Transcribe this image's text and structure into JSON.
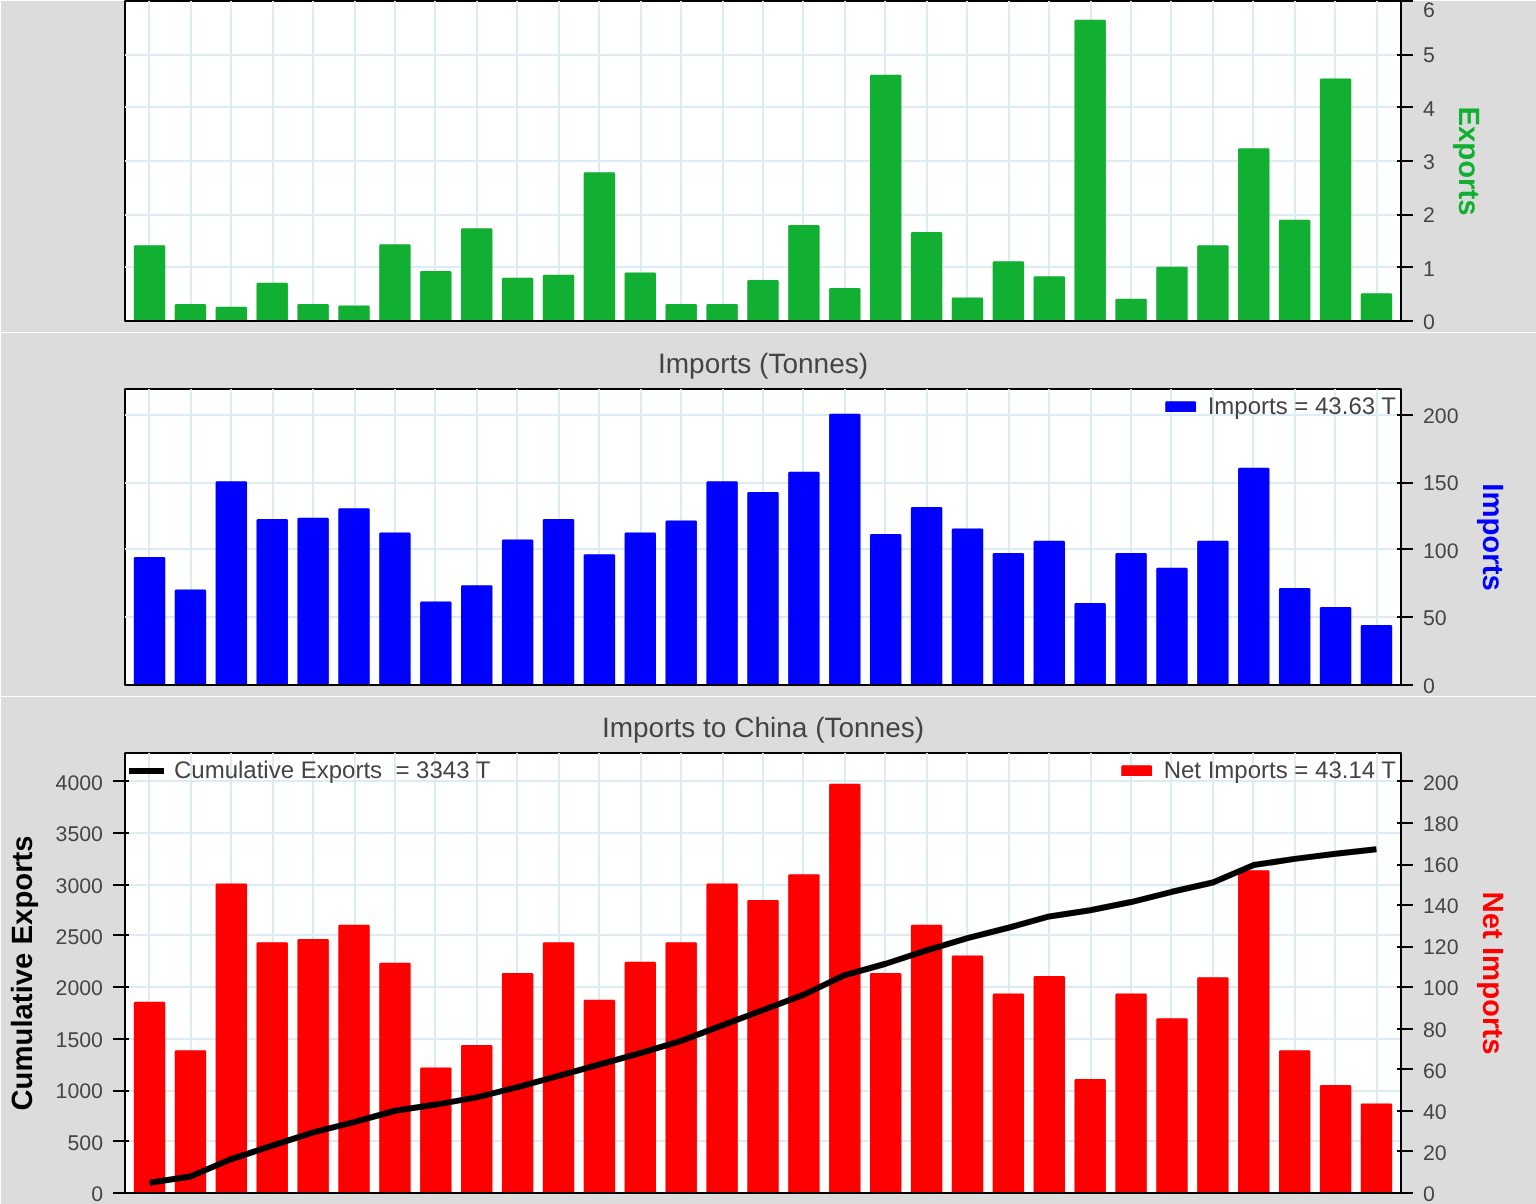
{
  "chart_data": [
    {
      "type": "bar",
      "ylabel": "Exports",
      "categories": [
        null,
        null,
        null,
        null,
        null,
        null,
        null,
        null,
        null,
        null,
        null,
        null,
        null,
        null,
        null,
        null,
        null,
        null,
        null,
        null,
        null,
        null,
        null,
        null,
        null,
        null,
        null,
        null,
        null,
        null,
        null
      ],
      "ylim": [
        0,
        6
      ],
      "yticks": [
        0,
        1,
        2,
        3,
        4,
        5,
        6
      ],
      "grid": true,
      "tick_labels": "y",
      "legend": false,
      "series": [
        {
          "color": "#12b032",
          "values": [
            1.4,
            0.3,
            0.25,
            0.7,
            0.3,
            0.27,
            1.42,
            0.92,
            1.72,
            0.79,
            0.85,
            2.77,
            0.89,
            0.3,
            0.3,
            0.75,
            1.78,
            0.6,
            4.6,
            1.65,
            0.42,
            1.1,
            0.82,
            5.63,
            0.4,
            1.0,
            1.4,
            3.22,
            1.88,
            4.53,
            0.5
          ]
        }
      ]
    },
    {
      "type": "bar",
      "title": "Imports (Tonnes)",
      "ylabel": "Imports",
      "categories": [
        null,
        null,
        null,
        null,
        null,
        null,
        null,
        null,
        null,
        null,
        null,
        null,
        null,
        null,
        null,
        null,
        null,
        null,
        null,
        null,
        null,
        null,
        null,
        null,
        null,
        null,
        null,
        null,
        null,
        null,
        null
      ],
      "ylim": [
        0,
        219
      ],
      "yticks": [
        0,
        50,
        100,
        150,
        200
      ],
      "grid": true,
      "tick_labels": "y",
      "legend": "top right",
      "series": [
        {
          "name": "Imports = 43.63 T",
          "color": "#0000ff",
          "values": [
            94,
            70,
            150,
            122,
            123,
            130,
            112,
            61,
            73,
            107,
            122,
            96,
            112,
            121,
            150,
            142,
            157,
            200,
            111,
            131,
            115,
            97,
            106,
            60,
            97,
            86,
            106,
            160,
            71,
            57,
            43.6
          ]
        }
      ]
    },
    {
      "type": "bar",
      "title": "Imports to China (Tonnes)",
      "ylabel": "Cumulative Exports",
      "y2label": "Net Imports",
      "categories": [
        null,
        null,
        null,
        null,
        null,
        null,
        null,
        null,
        null,
        null,
        null,
        null,
        null,
        null,
        null,
        null,
        null,
        null,
        null,
        null,
        null,
        null,
        null,
        null,
        null,
        null,
        null,
        null,
        null,
        null,
        null
      ],
      "ylim": [
        0,
        4280
      ],
      "yticks": [
        0,
        500,
        1000,
        1500,
        2000,
        2500,
        3000,
        3500,
        4000
      ],
      "y2lim": [
        0,
        214
      ],
      "y2ticks": [
        0,
        20,
        40,
        60,
        80,
        100,
        120,
        140,
        160,
        180,
        200
      ],
      "grid": true,
      "tick_labels": "y",
      "legend": "top",
      "series": [
        {
          "name": "Net Imports = 43.14 T",
          "type": "bar",
          "axis": "y2",
          "color": "#ff0000",
          "values": [
            92.5,
            69,
            150,
            121.5,
            123,
            130,
            111.5,
            60.5,
            71.5,
            106.5,
            121.5,
            93.5,
            112,
            121.5,
            150,
            142,
            154.5,
            198.5,
            106.5,
            130,
            115,
            96.5,
            105,
            55,
            96.5,
            84.5,
            104.5,
            156.5,
            69,
            52,
            43.1
          ]
        },
        {
          "name": "Cumulative Exports  = 3343 T",
          "type": "line",
          "color": "#000000",
          "values": [
            100,
            160,
            330,
            460,
            590,
            690,
            800,
            860,
            930,
            1030,
            1140,
            1250,
            1360,
            1480,
            1630,
            1780,
            1930,
            2120,
            2230,
            2360,
            2480,
            2580,
            2690,
            2750,
            2830,
            2930,
            3020,
            3190,
            3250,
            3300,
            3343
          ]
        }
      ]
    }
  ]
}
